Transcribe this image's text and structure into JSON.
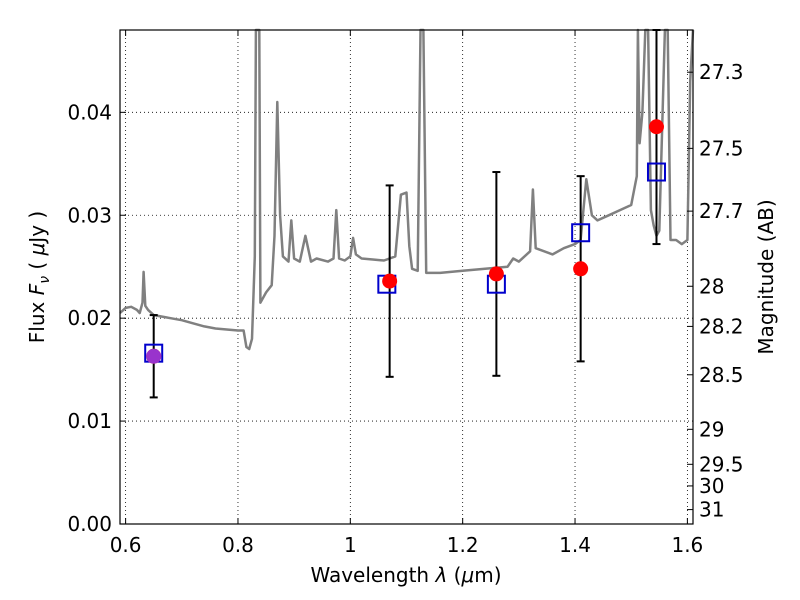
{
  "chart_data": {
    "type": "scatter",
    "xlabel": "Wavelength  λ (μm)",
    "ylabel": "Flux  F_ν  ( μJy )",
    "y2label": "Magnitude (AB)",
    "xlim": [
      0.59,
      1.61
    ],
    "ylim": [
      0.0,
      0.048
    ],
    "x_ticks": [
      0.6,
      0.8,
      1.0,
      1.2,
      1.4,
      1.6
    ],
    "x_tick_labels": [
      "0.6",
      "0.8",
      "1",
      "1.2",
      "1.4",
      "1.6"
    ],
    "y_ticks": [
      0.0,
      0.01,
      0.02,
      0.03,
      0.04
    ],
    "y_tick_labels": [
      "0.00",
      "0.01",
      "0.02",
      "0.03",
      "0.04"
    ],
    "grid": true,
    "y2_ticks": [
      {
        "label": "27.3",
        "flux": 0.0439
      },
      {
        "label": "27.5",
        "flux": 0.0365
      },
      {
        "label": "27.7",
        "flux": 0.0304
      },
      {
        "label": "28",
        "flux": 0.0231
      },
      {
        "label": "28.2",
        "flux": 0.0192
      },
      {
        "label": "28.5",
        "flux": 0.0145
      },
      {
        "label": "29",
        "flux": 0.0092
      },
      {
        "label": "29.5",
        "flux": 0.0058
      },
      {
        "label": "30",
        "flux": 0.0037
      },
      {
        "label": "31",
        "flux": 0.0014
      }
    ],
    "colors": {
      "model": "#808080",
      "observed": "#ff0000",
      "model_photometry": "#0000cc",
      "errorbar": "#000000",
      "overlap": "#9933cc"
    },
    "series": [
      {
        "kind": "line",
        "points": [
          [
            0.59,
            0.0205
          ],
          [
            0.6,
            0.021
          ],
          [
            0.61,
            0.0211
          ],
          [
            0.62,
            0.0208
          ],
          [
            0.625,
            0.0205
          ],
          [
            0.63,
            0.0215
          ],
          [
            0.632,
            0.0245
          ],
          [
            0.635,
            0.0212
          ],
          [
            0.64,
            0.0208
          ],
          [
            0.65,
            0.0203
          ],
          [
            0.66,
            0.0202
          ],
          [
            0.67,
            0.0201
          ],
          [
            0.68,
            0.02
          ],
          [
            0.7,
            0.0198
          ],
          [
            0.72,
            0.0195
          ],
          [
            0.74,
            0.0192
          ],
          [
            0.76,
            0.019
          ],
          [
            0.78,
            0.0189
          ],
          [
            0.8,
            0.0188
          ],
          [
            0.81,
            0.0188
          ],
          [
            0.815,
            0.0172
          ],
          [
            0.82,
            0.017
          ],
          [
            0.825,
            0.018
          ],
          [
            0.83,
            0.026
          ],
          [
            0.832,
            0.048
          ],
          [
            0.838,
            0.048
          ],
          [
            0.84,
            0.0215
          ],
          [
            0.85,
            0.0225
          ],
          [
            0.86,
            0.0232
          ],
          [
            0.865,
            0.028
          ],
          [
            0.87,
            0.041
          ],
          [
            0.875,
            0.03
          ],
          [
            0.88,
            0.026
          ],
          [
            0.89,
            0.0255
          ],
          [
            0.895,
            0.0295
          ],
          [
            0.9,
            0.0258
          ],
          [
            0.91,
            0.0255
          ],
          [
            0.92,
            0.028
          ],
          [
            0.93,
            0.0255
          ],
          [
            0.94,
            0.0258
          ],
          [
            0.96,
            0.0255
          ],
          [
            0.97,
            0.0258
          ],
          [
            0.975,
            0.0305
          ],
          [
            0.98,
            0.0258
          ],
          [
            0.99,
            0.0256
          ],
          [
            1.0,
            0.026
          ],
          [
            1.005,
            0.0278
          ],
          [
            1.01,
            0.0262
          ],
          [
            1.02,
            0.0258
          ],
          [
            1.04,
            0.0257
          ],
          [
            1.06,
            0.0256
          ],
          [
            1.08,
            0.026
          ],
          [
            1.09,
            0.032
          ],
          [
            1.1,
            0.0322
          ],
          [
            1.105,
            0.027
          ],
          [
            1.11,
            0.0248
          ],
          [
            1.12,
            0.0246
          ],
          [
            1.125,
            0.048
          ],
          [
            1.13,
            0.048
          ],
          [
            1.135,
            0.0244
          ],
          [
            1.16,
            0.0244
          ],
          [
            1.2,
            0.0246
          ],
          [
            1.24,
            0.0248
          ],
          [
            1.28,
            0.025
          ],
          [
            1.29,
            0.0258
          ],
          [
            1.3,
            0.0255
          ],
          [
            1.32,
            0.0265
          ],
          [
            1.325,
            0.0325
          ],
          [
            1.33,
            0.0268
          ],
          [
            1.36,
            0.0262
          ],
          [
            1.38,
            0.0268
          ],
          [
            1.4,
            0.0272
          ],
          [
            1.41,
            0.0276
          ],
          [
            1.42,
            0.0335
          ],
          [
            1.43,
            0.03
          ],
          [
            1.44,
            0.0295
          ],
          [
            1.46,
            0.03
          ],
          [
            1.48,
            0.0305
          ],
          [
            1.5,
            0.031
          ],
          [
            1.51,
            0.0338
          ],
          [
            1.512,
            0.048
          ],
          [
            1.515,
            0.037
          ],
          [
            1.52,
            0.04
          ],
          [
            1.525,
            0.048
          ],
          [
            1.53,
            0.048
          ],
          [
            1.535,
            0.0305
          ],
          [
            1.54,
            0.029
          ],
          [
            1.545,
            0.028
          ],
          [
            1.55,
            0.0285
          ],
          [
            1.56,
            0.048
          ],
          [
            1.565,
            0.048
          ],
          [
            1.57,
            0.0276
          ],
          [
            1.58,
            0.0276
          ],
          [
            1.59,
            0.0272
          ],
          [
            1.6,
            0.0276
          ],
          [
            1.605,
            0.043
          ],
          [
            1.61,
            0.048
          ]
        ]
      },
      {
        "kind": "errorbar",
        "points": [
          {
            "x": 0.65,
            "y": 0.0163,
            "lo": 0.0123,
            "hi": 0.0203
          },
          {
            "x": 1.07,
            "y": 0.0236,
            "lo": 0.0143,
            "hi": 0.0329
          },
          {
            "x": 1.26,
            "y": 0.0243,
            "lo": 0.0144,
            "hi": 0.0342
          },
          {
            "x": 1.41,
            "y": 0.0248,
            "lo": 0.0158,
            "hi": 0.0338
          },
          {
            "x": 1.545,
            "y": 0.0386,
            "lo": 0.0272,
            "hi": 0.048
          }
        ]
      },
      {
        "kind": "squares",
        "points": [
          {
            "x": 0.65,
            "y": 0.0166
          },
          {
            "x": 1.065,
            "y": 0.0233
          },
          {
            "x": 1.26,
            "y": 0.0233
          },
          {
            "x": 1.41,
            "y": 0.0283
          },
          {
            "x": 1.545,
            "y": 0.0342
          }
        ]
      }
    ]
  }
}
